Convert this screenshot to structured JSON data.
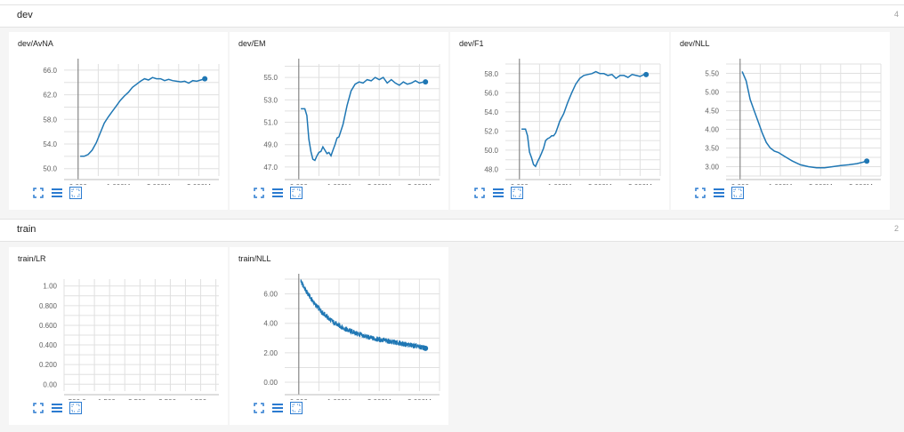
{
  "colors": {
    "line": "#1f77b4",
    "grid": "#e0e0e0",
    "axis": "#bdbdbd",
    "toolIcon": "#2b7bd0"
  },
  "sections": [
    {
      "title": "dev",
      "count": "4"
    },
    {
      "title": "train",
      "count": "2"
    }
  ],
  "tools": [
    "fit-domain-icon",
    "data-table-icon",
    "fullscreen-icon"
  ],
  "chart_data": [
    {
      "type": "line",
      "title": "dev/AvNA",
      "x": [
        0.05,
        0.15,
        0.25,
        0.35,
        0.45,
        0.55,
        0.65,
        0.75,
        0.85,
        0.95,
        1.05,
        1.15,
        1.25,
        1.35,
        1.45,
        1.55,
        1.65,
        1.75,
        1.85,
        1.95,
        2.05,
        2.15,
        2.25,
        2.35,
        2.45,
        2.55,
        2.65,
        2.75,
        2.85,
        2.95,
        3.05,
        3.15
      ],
      "y": [
        52.0,
        52.0,
        52.3,
        53.0,
        54.2,
        55.8,
        57.4,
        58.4,
        59.3,
        60.2,
        61.1,
        61.8,
        62.4,
        63.2,
        63.7,
        64.2,
        64.6,
        64.4,
        64.8,
        64.6,
        64.6,
        64.3,
        64.5,
        64.3,
        64.2,
        64.1,
        64.2,
        63.9,
        64.3,
        64.2,
        64.4,
        64.6
      ],
      "xticks": [
        "0.000",
        "1.000M",
        "2.000M",
        "3.000M"
      ],
      "xtickvals": [
        0,
        1,
        2,
        3
      ],
      "yticks": [
        "50.0",
        "54.0",
        "58.0",
        "62.0",
        "66.0"
      ],
      "ytickvals": [
        50,
        54,
        58,
        62,
        66
      ],
      "xlim": [
        -0.35,
        3.5
      ],
      "ylim": [
        48.8,
        67.0
      ]
    },
    {
      "type": "line",
      "title": "dev/EM",
      "x": [
        0.05,
        0.15,
        0.2,
        0.25,
        0.3,
        0.35,
        0.4,
        0.45,
        0.5,
        0.55,
        0.6,
        0.65,
        0.7,
        0.75,
        0.8,
        0.85,
        0.9,
        0.95,
        1.0,
        1.1,
        1.2,
        1.3,
        1.4,
        1.5,
        1.6,
        1.7,
        1.8,
        1.9,
        2.0,
        2.1,
        2.2,
        2.3,
        2.4,
        2.5,
        2.6,
        2.7,
        2.8,
        2.9,
        3.0,
        3.1,
        3.15
      ],
      "y": [
        52.2,
        52.2,
        51.6,
        49.5,
        48.4,
        47.7,
        47.6,
        48.0,
        48.3,
        48.4,
        48.8,
        48.5,
        48.2,
        48.3,
        48.0,
        48.5,
        49.0,
        49.6,
        49.7,
        50.8,
        52.5,
        53.8,
        54.4,
        54.6,
        54.5,
        54.8,
        54.7,
        55.0,
        54.8,
        55.0,
        54.5,
        54.8,
        54.5,
        54.3,
        54.6,
        54.4,
        54.5,
        54.7,
        54.5,
        54.6,
        54.6
      ],
      "xticks": [
        "0.000",
        "1.000M",
        "2.000M",
        "3.000M"
      ],
      "xtickvals": [
        0,
        1,
        2,
        3
      ],
      "yticks": [
        "47.0",
        "49.0",
        "51.0",
        "53.0",
        "55.0"
      ],
      "ytickvals": [
        47,
        49,
        51,
        53,
        55
      ],
      "xlim": [
        -0.35,
        3.5
      ],
      "ylim": [
        46.2,
        56.2
      ]
    },
    {
      "type": "line",
      "title": "dev/F1",
      "x": [
        0.05,
        0.15,
        0.2,
        0.25,
        0.3,
        0.35,
        0.4,
        0.45,
        0.5,
        0.55,
        0.6,
        0.65,
        0.7,
        0.75,
        0.8,
        0.85,
        0.9,
        0.95,
        1.0,
        1.1,
        1.2,
        1.3,
        1.4,
        1.5,
        1.6,
        1.7,
        1.8,
        1.9,
        2.0,
        2.1,
        2.2,
        2.3,
        2.4,
        2.5,
        2.6,
        2.7,
        2.8,
        2.9,
        3.0,
        3.1,
        3.15
      ],
      "y": [
        52.2,
        52.2,
        51.5,
        49.8,
        49.2,
        48.5,
        48.3,
        48.8,
        49.2,
        49.7,
        50.2,
        51.0,
        51.2,
        51.3,
        51.5,
        51.5,
        51.8,
        52.4,
        53.0,
        53.8,
        55.0,
        56.0,
        56.9,
        57.5,
        57.8,
        57.9,
        58.0,
        58.2,
        58.0,
        58.0,
        57.8,
        57.9,
        57.5,
        57.8,
        57.8,
        57.6,
        57.9,
        57.8,
        57.7,
        57.9,
        57.9
      ],
      "xticks": [
        "0.000",
        "1.000M",
        "2.000M",
        "3.000M"
      ],
      "xtickvals": [
        0,
        1,
        2,
        3
      ],
      "yticks": [
        "48.0",
        "50.0",
        "52.0",
        "54.0",
        "56.0",
        "58.0"
      ],
      "ytickvals": [
        48,
        50,
        52,
        54,
        56,
        58
      ],
      "xlim": [
        -0.35,
        3.5
      ],
      "ylim": [
        47.3,
        59.0
      ]
    },
    {
      "type": "line",
      "title": "dev/NLL",
      "x": [
        0.05,
        0.15,
        0.25,
        0.35,
        0.45,
        0.55,
        0.65,
        0.75,
        0.85,
        0.95,
        1.1,
        1.3,
        1.5,
        1.7,
        1.9,
        2.1,
        2.3,
        2.5,
        2.7,
        2.9,
        3.05,
        3.15
      ],
      "y": [
        5.55,
        5.3,
        4.8,
        4.5,
        4.2,
        3.9,
        3.65,
        3.5,
        3.42,
        3.38,
        3.28,
        3.15,
        3.05,
        3.0,
        2.97,
        2.97,
        3.0,
        3.03,
        3.05,
        3.08,
        3.12,
        3.15
      ],
      "xticks": [
        "0.000",
        "1.000M",
        "2.000M",
        "3.000M"
      ],
      "xtickvals": [
        0,
        1,
        2,
        3
      ],
      "yticks": [
        "3.00",
        "3.50",
        "4.00",
        "4.50",
        "5.00",
        "5.50"
      ],
      "ytickvals": [
        3.0,
        3.5,
        4.0,
        4.5,
        5.0,
        5.5
      ],
      "xlim": [
        -0.35,
        3.5
      ],
      "ylim": [
        2.75,
        5.75
      ]
    },
    {
      "type": "line",
      "title": "train/LR",
      "x": [],
      "y": [],
      "xticks": [
        "500.0μ",
        "1.500m",
        "2.500m",
        "3.500m",
        "4.500m"
      ],
      "xtickvals": [
        0.5,
        1.5,
        2.5,
        3.5,
        4.5
      ],
      "yticks": [
        "0.00",
        "0.200",
        "0.400",
        "0.600",
        "0.800",
        "1.00"
      ],
      "ytickvals": [
        0,
        0.2,
        0.4,
        0.6,
        0.8,
        1.0
      ],
      "xlim": [
        0,
        5.1
      ],
      "ylim": [
        -0.07,
        1.07
      ]
    },
    {
      "type": "line",
      "title": "train/NLL",
      "x": [
        0.05,
        0.1,
        0.2,
        0.3,
        0.4,
        0.5,
        0.6,
        0.7,
        0.8,
        0.9,
        1.0,
        1.1,
        1.2,
        1.3,
        1.4,
        1.5,
        1.6,
        1.7,
        1.8,
        1.9,
        2.0,
        2.1,
        2.2,
        2.3,
        2.4,
        2.5,
        2.6,
        2.7,
        2.8,
        2.9,
        3.0,
        3.1,
        3.15
      ],
      "y": [
        6.9,
        6.6,
        6.1,
        5.7,
        5.3,
        5.0,
        4.7,
        4.45,
        4.2,
        4.0,
        3.85,
        3.7,
        3.55,
        3.45,
        3.35,
        3.25,
        3.15,
        3.08,
        3.0,
        2.95,
        2.9,
        2.85,
        2.8,
        2.75,
        2.7,
        2.65,
        2.6,
        2.55,
        2.5,
        2.45,
        2.4,
        2.35,
        2.3
      ],
      "noise": 0.18,
      "xticks": [
        "0.000",
        "1.000M",
        "2.000M",
        "3.000M"
      ],
      "xtickvals": [
        0,
        1,
        2,
        3
      ],
      "yticks": [
        "0.00",
        "2.00",
        "4.00",
        "6.00"
      ],
      "ytickvals": [
        0,
        2,
        4,
        6
      ],
      "xlim": [
        -0.35,
        3.5
      ],
      "ylim": [
        -0.6,
        7.0
      ]
    }
  ]
}
